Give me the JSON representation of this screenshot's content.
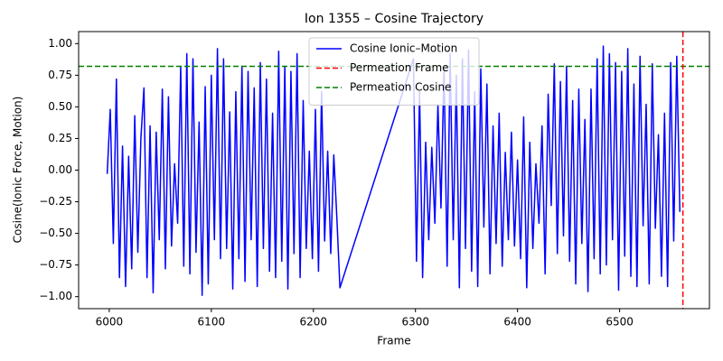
{
  "chart_data": {
    "type": "line",
    "title": "Ion 1355 – Cosine Trajectory",
    "x_label": "Frame",
    "y_label": "Cosine(Ionic Force, Motion)",
    "x": [
      5998,
      6001,
      6004,
      6007,
      6010,
      6013,
      6016,
      6019,
      6022,
      6025,
      6028,
      6031,
      6034,
      6037,
      6040,
      6043,
      6046,
      6049,
      6052,
      6055,
      6058,
      6061,
      6064,
      6067,
      6070,
      6073,
      6076,
      6079,
      6082,
      6085,
      6088,
      6091,
      6094,
      6097,
      6100,
      6103,
      6106,
      6109,
      6112,
      6115,
      6118,
      6121,
      6124,
      6127,
      6130,
      6133,
      6136,
      6139,
      6142,
      6145,
      6148,
      6151,
      6154,
      6157,
      6160,
      6163,
      6166,
      6169,
      6172,
      6175,
      6178,
      6181,
      6184,
      6187,
      6190,
      6193,
      6196,
      6199,
      6202,
      6205,
      6208,
      6211,
      6214,
      6217,
      6220,
      6223,
      6226,
      6298,
      6301,
      6304,
      6307,
      6310,
      6313,
      6316,
      6319,
      6322,
      6325,
      6328,
      6331,
      6334,
      6337,
      6340,
      6343,
      6346,
      6349,
      6352,
      6355,
      6358,
      6361,
      6364,
      6367,
      6370,
      6373,
      6376,
      6379,
      6382,
      6385,
      6388,
      6391,
      6394,
      6397,
      6400,
      6403,
      6406,
      6409,
      6412,
      6415,
      6418,
      6421,
      6424,
      6427,
      6430,
      6433,
      6436,
      6439,
      6442,
      6445,
      6448,
      6451,
      6454,
      6457,
      6460,
      6463,
      6466,
      6469,
      6472,
      6475,
      6478,
      6481,
      6484,
      6487,
      6490,
      6493,
      6496,
      6499,
      6502,
      6505,
      6508,
      6511,
      6514,
      6517,
      6520,
      6523,
      6526,
      6529,
      6532,
      6535,
      6538,
      6541,
      6544,
      6547,
      6550,
      6553,
      6556,
      6559
    ],
    "series": [
      {
        "name": "Cosine Ionic–Motion",
        "color": "#0000ff",
        "values": [
          -0.03,
          0.48,
          -0.58,
          0.72,
          -0.85,
          0.19,
          -0.92,
          0.11,
          -0.78,
          0.43,
          -0.65,
          0.25,
          0.65,
          -0.85,
          0.35,
          -0.97,
          0.3,
          -0.55,
          0.64,
          -0.78,
          0.58,
          -0.6,
          0.05,
          -0.42,
          0.82,
          -0.76,
          0.92,
          -0.82,
          0.88,
          -0.65,
          0.38,
          -0.99,
          0.66,
          -0.9,
          0.75,
          -0.55,
          0.96,
          -0.7,
          0.88,
          -0.62,
          0.46,
          -0.94,
          0.62,
          -0.7,
          0.82,
          -0.88,
          0.78,
          -0.55,
          0.65,
          -0.92,
          0.85,
          -0.62,
          0.72,
          -0.8,
          0.45,
          -0.85,
          0.94,
          -0.72,
          0.82,
          -0.94,
          0.78,
          -0.66,
          0.92,
          -0.85,
          0.55,
          -0.62,
          0.15,
          -0.7,
          0.48,
          -0.8,
          0.62,
          -0.56,
          0.15,
          -0.66,
          0.12,
          -0.38,
          -0.93,
          0.88,
          -0.72,
          0.62,
          -0.85,
          0.22,
          -0.55,
          0.18,
          -0.42,
          0.52,
          -0.3,
          0.82,
          -0.76,
          0.92,
          -0.55,
          0.75,
          -0.93,
          0.88,
          -0.62,
          0.95,
          -0.8,
          0.62,
          -0.92,
          0.8,
          -0.45,
          0.68,
          -0.82,
          0.35,
          -0.58,
          0.45,
          -0.76,
          0.14,
          -0.55,
          0.3,
          -0.6,
          0.08,
          -0.7,
          0.42,
          -0.93,
          0.22,
          -0.62,
          0.05,
          -0.42,
          0.35,
          -0.82,
          0.6,
          -0.28,
          0.84,
          -0.66,
          0.7,
          -0.52,
          0.82,
          -0.72,
          0.55,
          -0.9,
          0.64,
          -0.58,
          0.4,
          -0.96,
          0.64,
          -0.7,
          0.88,
          -0.82,
          0.98,
          -0.75,
          0.92,
          -0.55,
          0.85,
          -0.95,
          0.78,
          -0.68,
          0.96,
          -0.84,
          0.68,
          -0.92,
          0.9,
          -0.44,
          0.52,
          -0.9,
          0.84,
          -0.46,
          0.28,
          -0.84,
          0.45,
          -0.92,
          0.85,
          -0.56,
          0.9,
          -0.33
        ]
      }
    ],
    "vlines": [
      {
        "name": "Permeation Frame",
        "color": "#ff0000",
        "value": 6562
      }
    ],
    "hlines": [
      {
        "name": "Permeation Cosine",
        "color": "#008000",
        "value": 0.82
      }
    ],
    "xlim": [
      5970,
      6588
    ],
    "ylim": [
      -1.095,
      1.095
    ],
    "xticks": [
      6000,
      6100,
      6200,
      6300,
      6400,
      6500
    ],
    "yticks": [
      {
        "value": -1,
        "label": "−1.00"
      },
      {
        "value": -0.75,
        "label": "−0.75"
      },
      {
        "value": -0.5,
        "label": "−0.50"
      },
      {
        "value": -0.25,
        "label": "−0.25"
      },
      {
        "value": 0,
        "label": "0.00"
      },
      {
        "value": 0.25,
        "label": "0.25"
      },
      {
        "value": 0.5,
        "label": "0.50"
      },
      {
        "value": 0.75,
        "label": "0.75"
      },
      {
        "value": 1,
        "label": "1.00"
      }
    ],
    "legend": "upper center"
  }
}
